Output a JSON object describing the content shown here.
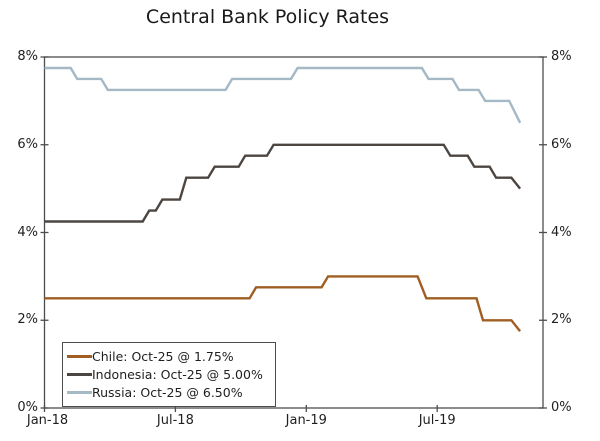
{
  "title": "Central Bank Policy Rates",
  "chart_data": {
    "type": "line",
    "title": "Central Bank Policy Rates",
    "x_unit": "months since Jan-2018",
    "xlim": [
      0,
      22.85
    ],
    "ylim": [
      0,
      8
    ],
    "grid": false,
    "legend_position": "bottom-left",
    "y_ticks": [
      8,
      6,
      4,
      2,
      0
    ],
    "y_tick_labels": [
      "8%",
      "6%",
      "4%",
      "2%",
      "0%"
    ],
    "x_tick_months": [
      0,
      6,
      12,
      18
    ],
    "x_tick_labels": [
      "Jan-18",
      "Jul-18",
      "Jan-19",
      "Jul-19"
    ],
    "series": [
      {
        "name": "Chile",
        "legend_label": "Chile: Oct-25 @ 1.75%",
        "color": "#A15E22",
        "points": [
          [
            0,
            2.5
          ],
          [
            9.4,
            2.5
          ],
          [
            9.7,
            2.75
          ],
          [
            12.7,
            2.75
          ],
          [
            13.0,
            3.0
          ],
          [
            17.1,
            3.0
          ],
          [
            17.5,
            2.5
          ],
          [
            19.8,
            2.5
          ],
          [
            20.1,
            2.0
          ],
          [
            21.4,
            2.0
          ],
          [
            21.8,
            1.75
          ]
        ]
      },
      {
        "name": "Indonesia",
        "legend_label": "Indonesia: Oct-25 @ 5.00%",
        "color": "#4C4540",
        "points": [
          [
            0,
            4.25
          ],
          [
            4.5,
            4.25
          ],
          [
            4.8,
            4.5
          ],
          [
            5.1,
            4.5
          ],
          [
            5.4,
            4.75
          ],
          [
            6.2,
            4.75
          ],
          [
            6.5,
            5.25
          ],
          [
            7.5,
            5.25
          ],
          [
            7.8,
            5.5
          ],
          [
            8.9,
            5.5
          ],
          [
            9.2,
            5.75
          ],
          [
            10.2,
            5.75
          ],
          [
            10.5,
            6.0
          ],
          [
            18.3,
            6.0
          ],
          [
            18.6,
            5.75
          ],
          [
            19.4,
            5.75
          ],
          [
            19.7,
            5.5
          ],
          [
            20.4,
            5.5
          ],
          [
            20.7,
            5.25
          ],
          [
            21.4,
            5.25
          ],
          [
            21.8,
            5.0
          ]
        ]
      },
      {
        "name": "Russia",
        "legend_label": "Russia: Oct-25 @ 6.50%",
        "color": "#A4B8C6",
        "points": [
          [
            0,
            7.75
          ],
          [
            1.2,
            7.75
          ],
          [
            1.5,
            7.5
          ],
          [
            2.6,
            7.5
          ],
          [
            2.9,
            7.25
          ],
          [
            8.3,
            7.25
          ],
          [
            8.6,
            7.5
          ],
          [
            11.3,
            7.5
          ],
          [
            11.6,
            7.75
          ],
          [
            17.3,
            7.75
          ],
          [
            17.6,
            7.5
          ],
          [
            18.7,
            7.5
          ],
          [
            19.0,
            7.25
          ],
          [
            19.9,
            7.25
          ],
          [
            20.2,
            7.0
          ],
          [
            21.3,
            7.0
          ],
          [
            21.8,
            6.5
          ]
        ]
      }
    ],
    "frame_color": "#4d4d4d"
  }
}
